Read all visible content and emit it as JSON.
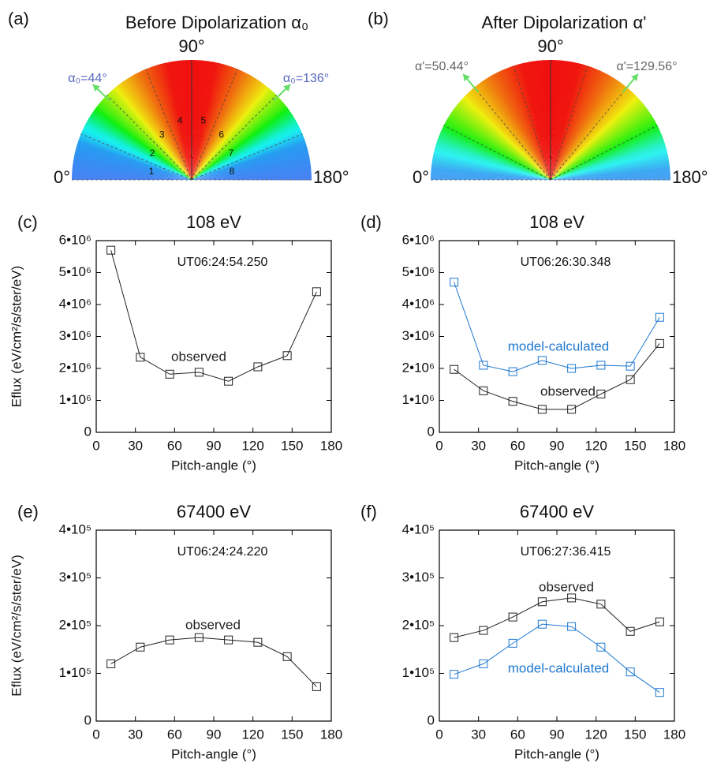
{
  "diagrams": [
    {
      "panel": "(a)",
      "title": "Before Dipolarization α₀",
      "top_label": "90°",
      "left_label": "0°",
      "right_label": "180°",
      "arrow_labels": [
        "α₀=44°",
        "α₀=136°"
      ],
      "sector_labels": [
        "1",
        "2",
        "3",
        "4",
        "5",
        "6",
        "7",
        "8"
      ]
    },
    {
      "panel": "(b)",
      "title": "After Dipolarization α'",
      "top_label": "90°",
      "left_label": "0°",
      "right_label": "180°",
      "arrow_labels": [
        "α'=50.44°",
        "α'=129.56°"
      ]
    }
  ],
  "chart_data": [
    {
      "type": "line",
      "panel": "(c)",
      "title": "108 eV",
      "annotation": "UT06:24:54.250",
      "x_label": "Pitch-angle (°)",
      "y_label": "Eflux (eV/cm²/s/ster/eV)",
      "x": [
        11.25,
        33.75,
        56.25,
        78.75,
        101.25,
        123.75,
        146.25,
        168.75
      ],
      "series": [
        {
          "name": "observed",
          "color": "#222222",
          "values": [
            5700000,
            2350000,
            1820000,
            1880000,
            1600000,
            2050000,
            2400000,
            4400000
          ]
        }
      ],
      "xlim": [
        0,
        180
      ],
      "xticks": [
        0,
        30,
        60,
        90,
        120,
        150,
        180
      ],
      "ylim": [
        0,
        6000000
      ],
      "yticks": [
        0,
        {
          "value": 1000000,
          "label": "1•10⁶"
        },
        {
          "value": 2000000,
          "label": "2•10⁶"
        },
        {
          "value": 3000000,
          "label": "3•10⁶"
        },
        {
          "value": 4000000,
          "label": "4•10⁶"
        },
        {
          "value": 5000000,
          "label": "5•10⁶"
        },
        {
          "value": 6000000,
          "label": "6•10⁶"
        }
      ]
    },
    {
      "type": "line",
      "panel": "(d)",
      "title": "108 eV",
      "annotation": "UT06:26:30.348",
      "x_label": "Pitch-angle (°)",
      "x": [
        11.25,
        33.75,
        56.25,
        78.75,
        101.25,
        123.75,
        146.25,
        168.75
      ],
      "series": [
        {
          "name": "observed",
          "color": "#222222",
          "values": [
            1970000,
            1300000,
            970000,
            720000,
            720000,
            1200000,
            1650000,
            2780000
          ]
        },
        {
          "name": "model-calculated",
          "color": "#1f78d1",
          "values": [
            4700000,
            2100000,
            1900000,
            2250000,
            2000000,
            2100000,
            2070000,
            3600000
          ]
        }
      ],
      "xlim": [
        0,
        180
      ],
      "xticks": [
        0,
        30,
        60,
        90,
        120,
        150,
        180
      ],
      "ylim": [
        0,
        6000000
      ],
      "yticks": [
        0,
        {
          "value": 1000000,
          "label": "1•10⁶"
        },
        {
          "value": 2000000,
          "label": "2•10⁶"
        },
        {
          "value": 3000000,
          "label": "3•10⁶"
        },
        {
          "value": 4000000,
          "label": "4•10⁶"
        },
        {
          "value": 5000000,
          "label": "5•10⁶"
        },
        {
          "value": 6000000,
          "label": "6•10⁶"
        }
      ]
    },
    {
      "type": "line",
      "panel": "(e)",
      "title": "67400 eV",
      "annotation": "UT06:24:24.220",
      "x_label": "Pitch-angle (°)",
      "y_label": "Eflux (eV/cm²/s/ster/eV)",
      "x": [
        11.25,
        33.75,
        56.25,
        78.75,
        101.25,
        123.75,
        146.25,
        168.75
      ],
      "series": [
        {
          "name": "observed",
          "color": "#222222",
          "values": [
            120000,
            155000,
            170000,
            175000,
            170000,
            165000,
            135000,
            72000
          ]
        }
      ],
      "xlim": [
        0,
        180
      ],
      "xticks": [
        0,
        30,
        60,
        90,
        120,
        150,
        180
      ],
      "ylim": [
        0,
        400000
      ],
      "yticks": [
        0,
        {
          "value": 100000,
          "label": "1•10⁵"
        },
        {
          "value": 200000,
          "label": "2•10⁵"
        },
        {
          "value": 300000,
          "label": "3•10⁵"
        },
        {
          "value": 400000,
          "label": "4•10⁵"
        }
      ]
    },
    {
      "type": "line",
      "panel": "(f)",
      "title": "67400 eV",
      "annotation": "UT06:27:36.415",
      "x_label": "Pitch-angle (°)",
      "x": [
        11.25,
        33.75,
        56.25,
        78.75,
        101.25,
        123.75,
        146.25,
        168.75
      ],
      "series": [
        {
          "name": "observed",
          "color": "#222222",
          "values": [
            175000,
            190000,
            218000,
            250000,
            258000,
            245000,
            188000,
            208000
          ]
        },
        {
          "name": "model-calculated",
          "color": "#1f78d1",
          "values": [
            98000,
            120000,
            163000,
            203000,
            198000,
            155000,
            103000,
            60000
          ]
        }
      ],
      "xlim": [
        0,
        180
      ],
      "xticks": [
        0,
        30,
        60,
        90,
        120,
        150,
        180
      ],
      "ylim": [
        0,
        400000
      ],
      "yticks": [
        0,
        {
          "value": 100000,
          "label": "1•10⁵"
        },
        {
          "value": 200000,
          "label": "2•10⁵"
        },
        {
          "value": 300000,
          "label": "3•10⁵"
        },
        {
          "value": 400000,
          "label": "4•10⁵"
        }
      ]
    }
  ]
}
